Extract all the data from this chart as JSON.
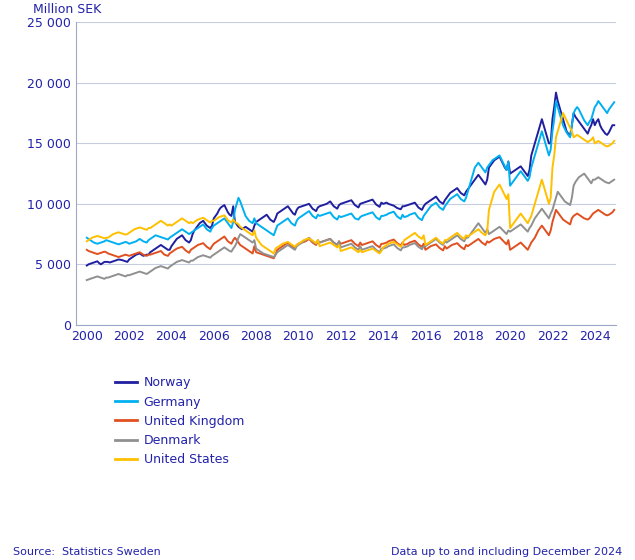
{
  "ylabel": "Million SEK",
  "ylim": [
    0,
    25000
  ],
  "yticks": [
    0,
    5000,
    10000,
    15000,
    20000,
    25000
  ],
  "ytick_labels": [
    "0",
    "5 000",
    "10 000",
    "15 000",
    "20 000",
    "25 000"
  ],
  "xticks": [
    2000,
    2002,
    2004,
    2006,
    2008,
    2010,
    2012,
    2014,
    2016,
    2018,
    2020,
    2022,
    2024
  ],
  "xlim": [
    1999.5,
    2025.0
  ],
  "source_text": "Source:  Statistics Sweden",
  "data_text": "Data up to and including December 2024",
  "background_color": "#ffffff",
  "grid_color": "#c8cce0",
  "text_color": "#2222aa",
  "series": {
    "Norway": {
      "color": "#1f1f9f",
      "linewidth": 1.4
    },
    "Germany": {
      "color": "#00b0f0",
      "linewidth": 1.4
    },
    "United Kingdom": {
      "color": "#e05020",
      "linewidth": 1.4
    },
    "Denmark": {
      "color": "#909090",
      "linewidth": 1.4
    },
    "United States": {
      "color": "#ffc000",
      "linewidth": 1.4
    }
  },
  "legend_entries": [
    "Norway",
    "Germany",
    "United Kingdom",
    "Denmark",
    "United States"
  ],
  "norway_vals": [
    4900,
    5000,
    5050,
    5100,
    5150,
    5200,
    5250,
    5100,
    5000,
    5100,
    5200,
    5200,
    5200,
    5150,
    5200,
    5250,
    5300,
    5350,
    5400,
    5380,
    5350,
    5300,
    5250,
    5200,
    5400,
    5500,
    5600,
    5700,
    5800,
    5850,
    5900,
    5800,
    5700,
    5750,
    5800,
    5800,
    6000,
    6100,
    6200,
    6300,
    6400,
    6500,
    6600,
    6500,
    6400,
    6300,
    6200,
    6200,
    6500,
    6700,
    6900,
    7100,
    7200,
    7300,
    7400,
    7200,
    7000,
    6900,
    6800,
    7000,
    7500,
    7800,
    8000,
    8200,
    8400,
    8500,
    8600,
    8400,
    8200,
    8100,
    8000,
    8200,
    8800,
    9000,
    9200,
    9500,
    9700,
    9800,
    9900,
    9600,
    9300,
    9100,
    9000,
    9800,
    8500,
    8300,
    8100,
    8000,
    7900,
    8000,
    8100,
    8000,
    7900,
    7800,
    7700,
    8200,
    8500,
    8600,
    8700,
    8800,
    8900,
    9000,
    9100,
    8900,
    8700,
    8600,
    8500,
    8800,
    9200,
    9300,
    9400,
    9500,
    9600,
    9700,
    9800,
    9600,
    9400,
    9200,
    9100,
    9500,
    9700,
    9750,
    9800,
    9850,
    9900,
    9950,
    10000,
    9800,
    9600,
    9500,
    9400,
    9700,
    9800,
    9850,
    9900,
    9950,
    10000,
    10100,
    10200,
    10000,
    9800,
    9700,
    9600,
    9900,
    10000,
    10050,
    10100,
    10150,
    10200,
    10250,
    10300,
    10100,
    9900,
    9800,
    9700,
    10000,
    10050,
    10100,
    10150,
    10200,
    10250,
    10300,
    10350,
    10150,
    9950,
    9850,
    9750,
    10100,
    10000,
    10050,
    10100,
    10000,
    9950,
    9900,
    9850,
    9750,
    9650,
    9600,
    9550,
    9800,
    9800,
    9850,
    9900,
    9950,
    10000,
    10050,
    10100,
    9900,
    9700,
    9600,
    9500,
    9800,
    10000,
    10100,
    10200,
    10300,
    10400,
    10500,
    10600,
    10400,
    10200,
    10100,
    10000,
    10300,
    10500,
    10700,
    10900,
    11000,
    11100,
    11200,
    11300,
    11100,
    10900,
    10800,
    10700,
    11000,
    11200,
    11400,
    11600,
    11800,
    12000,
    12200,
    12400,
    12200,
    12000,
    11800,
    11600,
    12000,
    13000,
    13200,
    13400,
    13600,
    13700,
    13800,
    13900,
    13600,
    13300,
    13000,
    12800,
    13500,
    12500,
    12600,
    12700,
    12800,
    12900,
    13000,
    13100,
    12900,
    12700,
    12500,
    12300,
    12800,
    14000,
    14500,
    15000,
    15500,
    16000,
    16500,
    17000,
    16500,
    16000,
    15500,
    15000,
    15000,
    17000,
    18000,
    19200,
    18500,
    18000,
    17500,
    17000,
    16500,
    16000,
    15800,
    15600,
    16500,
    17500,
    17200,
    17000,
    16800,
    16600,
    16400,
    16200,
    16000,
    15800,
    16200,
    16500,
    17000,
    16500,
    16800,
    17000,
    16500,
    16200,
    16000,
    15800,
    15700,
    15900,
    16200,
    16500,
    16500
  ],
  "germany_vals": [
    7200,
    7100,
    7000,
    6900,
    6800,
    6750,
    6700,
    6750,
    6800,
    6850,
    6900,
    7000,
    6950,
    6900,
    6850,
    6800,
    6750,
    6700,
    6650,
    6700,
    6750,
    6800,
    6850,
    6800,
    6700,
    6750,
    6800,
    6850,
    6900,
    7000,
    7100,
    7000,
    6900,
    6850,
    6800,
    7000,
    7100,
    7200,
    7300,
    7400,
    7350,
    7300,
    7250,
    7200,
    7150,
    7100,
    7050,
    7200,
    7300,
    7400,
    7500,
    7600,
    7700,
    7800,
    7900,
    7800,
    7700,
    7600,
    7500,
    7600,
    7700,
    7800,
    7900,
    8000,
    8100,
    8200,
    8300,
    8100,
    7900,
    7800,
    7700,
    8000,
    8200,
    8300,
    8400,
    8500,
    8600,
    8700,
    8800,
    8600,
    8400,
    8200,
    8000,
    8500,
    9500,
    10000,
    10500,
    10200,
    9800,
    9400,
    9000,
    8800,
    8600,
    8500,
    8400,
    8800,
    8400,
    8300,
    8200,
    8100,
    8000,
    7900,
    7800,
    7700,
    7600,
    7500,
    7400,
    7800,
    8200,
    8300,
    8400,
    8500,
    8600,
    8700,
    8800,
    8600,
    8400,
    8300,
    8200,
    8600,
    8800,
    8900,
    9000,
    9100,
    9200,
    9300,
    9400,
    9200,
    9000,
    8900,
    8800,
    9100,
    9000,
    9050,
    9100,
    9150,
    9200,
    9250,
    9300,
    9100,
    8900,
    8800,
    8700,
    9000,
    8900,
    8950,
    9000,
    9050,
    9100,
    9150,
    9200,
    9000,
    8800,
    8750,
    8700,
    8900,
    9000,
    9050,
    9100,
    9150,
    9200,
    9250,
    9300,
    9100,
    8900,
    8800,
    8700,
    9000,
    9000,
    9050,
    9100,
    9200,
    9250,
    9300,
    9350,
    9150,
    8950,
    8850,
    8750,
    9100,
    8900,
    8950,
    9000,
    9100,
    9150,
    9200,
    9250,
    9050,
    8850,
    8750,
    8650,
    9000,
    9200,
    9400,
    9600,
    9800,
    9900,
    10000,
    10100,
    9900,
    9700,
    9600,
    9500,
    9800,
    10000,
    10200,
    10400,
    10500,
    10600,
    10700,
    10800,
    10600,
    10400,
    10300,
    10200,
    10500,
    11000,
    11500,
    12000,
    12500,
    13000,
    13200,
    13400,
    13200,
    13000,
    12800,
    12600,
    13000,
    13200,
    13400,
    13600,
    13700,
    13800,
    13900,
    14000,
    13700,
    13400,
    13100,
    12800,
    13500,
    11500,
    11700,
    11900,
    12100,
    12300,
    12500,
    12700,
    12500,
    12300,
    12100,
    11900,
    12200,
    13000,
    13500,
    14000,
    14500,
    15000,
    15500,
    16000,
    15500,
    15000,
    14500,
    14000,
    14500,
    16000,
    17000,
    18500,
    18000,
    17500,
    17000,
    16500,
    16200,
    15900,
    15700,
    15500,
    16500,
    17500,
    17800,
    18000,
    17800,
    17500,
    17200,
    16900,
    16700,
    16500,
    16800,
    17000,
    17500,
    18000,
    18200,
    18500,
    18300,
    18100,
    17900,
    17700,
    17500,
    17800,
    18000,
    18200,
    18400
  ],
  "uk_vals": [
    6200,
    6100,
    6050,
    6000,
    5950,
    5900,
    5850,
    5900,
    5950,
    6000,
    6050,
    6000,
    5900,
    5850,
    5800,
    5750,
    5700,
    5650,
    5600,
    5650,
    5700,
    5750,
    5800,
    5750,
    5700,
    5750,
    5800,
    5850,
    5900,
    5950,
    6000,
    5900,
    5800,
    5750,
    5700,
    5800,
    5800,
    5850,
    5900,
    5950,
    6000,
    6050,
    6100,
    5950,
    5800,
    5750,
    5700,
    5900,
    6000,
    6100,
    6200,
    6300,
    6350,
    6400,
    6450,
    6300,
    6150,
    6050,
    5950,
    6200,
    6300,
    6400,
    6500,
    6600,
    6650,
    6700,
    6750,
    6600,
    6450,
    6350,
    6250,
    6500,
    6700,
    6800,
    6900,
    7000,
    7100,
    7200,
    7300,
    7100,
    6900,
    6800,
    6700,
    7000,
    7200,
    7000,
    6800,
    6600,
    6500,
    6400,
    6300,
    6200,
    6100,
    6000,
    5900,
    6500,
    6000,
    5950,
    5900,
    5850,
    5800,
    5750,
    5700,
    5650,
    5600,
    5550,
    5500,
    5800,
    6200,
    6300,
    6400,
    6500,
    6600,
    6700,
    6800,
    6650,
    6500,
    6400,
    6300,
    6600,
    6700,
    6750,
    6800,
    6850,
    6900,
    7000,
    7100,
    6950,
    6800,
    6700,
    6600,
    6900,
    6800,
    6850,
    6900,
    6950,
    7000,
    7050,
    7100,
    6950,
    6800,
    6700,
    6600,
    6900,
    6700,
    6750,
    6800,
    6850,
    6900,
    6950,
    7000,
    6850,
    6700,
    6600,
    6500,
    6800,
    6600,
    6650,
    6700,
    6750,
    6800,
    6850,
    6900,
    6750,
    6600,
    6500,
    6400,
    6700,
    6700,
    6750,
    6800,
    6900,
    6950,
    7000,
    7050,
    6900,
    6750,
    6650,
    6550,
    6800,
    6600,
    6650,
    6700,
    6800,
    6850,
    6900,
    6950,
    6800,
    6650,
    6550,
    6450,
    6700,
    6200,
    6300,
    6400,
    6500,
    6550,
    6600,
    6650,
    6500,
    6350,
    6250,
    6150,
    6500,
    6300,
    6400,
    6500,
    6600,
    6650,
    6700,
    6750,
    6600,
    6450,
    6350,
    6250,
    6600,
    6500,
    6600,
    6700,
    6800,
    6900,
    7000,
    7100,
    6950,
    6800,
    6700,
    6600,
    6900,
    6800,
    6900,
    7000,
    7100,
    7150,
    7200,
    7250,
    7100,
    6950,
    6800,
    6650,
    7000,
    6200,
    6300,
    6400,
    6500,
    6600,
    6700,
    6800,
    6650,
    6500,
    6350,
    6200,
    6500,
    6800,
    7000,
    7200,
    7500,
    7800,
    8000,
    8200,
    8000,
    7800,
    7600,
    7400,
    7800,
    8500,
    9000,
    9500,
    9300,
    9100,
    8900,
    8700,
    8600,
    8500,
    8400,
    8300,
    8800,
    9000,
    9100,
    9200,
    9100,
    9000,
    8900,
    8800,
    8750,
    8700,
    8800,
    9000,
    9200,
    9300,
    9400,
    9500,
    9400,
    9300,
    9200,
    9100,
    9050,
    9100,
    9200,
    9300,
    9500
  ],
  "denmark_vals": [
    3700,
    3750,
    3800,
    3850,
    3900,
    3950,
    4000,
    3950,
    3900,
    3850,
    3800,
    3900,
    3900,
    3950,
    4000,
    4050,
    4100,
    4150,
    4200,
    4150,
    4100,
    4050,
    4000,
    4100,
    4100,
    4150,
    4200,
    4250,
    4300,
    4350,
    4400,
    4350,
    4300,
    4250,
    4200,
    4300,
    4400,
    4500,
    4600,
    4700,
    4750,
    4800,
    4850,
    4800,
    4750,
    4700,
    4650,
    4800,
    4900,
    5000,
    5100,
    5200,
    5250,
    5300,
    5350,
    5300,
    5250,
    5200,
    5150,
    5300,
    5300,
    5400,
    5500,
    5600,
    5650,
    5700,
    5750,
    5700,
    5650,
    5600,
    5550,
    5700,
    5800,
    5900,
    6000,
    6100,
    6200,
    6300,
    6400,
    6300,
    6200,
    6100,
    6050,
    6300,
    6500,
    6800,
    7200,
    7500,
    7400,
    7300,
    7200,
    7100,
    7000,
    6900,
    6800,
    7000,
    6300,
    6200,
    6100,
    6000,
    5900,
    5850,
    5800,
    5750,
    5700,
    5650,
    5600,
    5800,
    6000,
    6100,
    6200,
    6300,
    6400,
    6500,
    6600,
    6500,
    6400,
    6300,
    6200,
    6500,
    6600,
    6700,
    6800,
    6900,
    7000,
    7100,
    7200,
    7050,
    6900,
    6800,
    6700,
    7000,
    6800,
    6850,
    6900,
    6950,
    7000,
    7050,
    7100,
    6950,
    6800,
    6700,
    6600,
    6900,
    6400,
    6450,
    6500,
    6550,
    6600,
    6650,
    6700,
    6550,
    6400,
    6300,
    6200,
    6500,
    6200,
    6250,
    6300,
    6350,
    6400,
    6450,
    6500,
    6350,
    6200,
    6100,
    6000,
    6300,
    6300,
    6350,
    6400,
    6500,
    6550,
    6600,
    6650,
    6500,
    6350,
    6250,
    6150,
    6400,
    6400,
    6450,
    6500,
    6600,
    6650,
    6700,
    6750,
    6600,
    6450,
    6350,
    6250,
    6500,
    6500,
    6600,
    6700,
    6800,
    6900,
    7000,
    7100,
    6950,
    6800,
    6700,
    6600,
    6900,
    6800,
    6900,
    7000,
    7100,
    7200,
    7300,
    7400,
    7250,
    7100,
    7000,
    6900,
    7200,
    7200,
    7400,
    7600,
    7800,
    8000,
    8200,
    8400,
    8200,
    8000,
    7800,
    7600,
    7900,
    7500,
    7600,
    7700,
    7800,
    7900,
    8000,
    8100,
    7950,
    7800,
    7650,
    7500,
    7800,
    7700,
    7800,
    7900,
    8000,
    8100,
    8200,
    8300,
    8150,
    8000,
    7850,
    7700,
    8000,
    8200,
    8500,
    8800,
    9000,
    9200,
    9400,
    9600,
    9400,
    9200,
    9000,
    8800,
    9200,
    9500,
    10000,
    10500,
    11000,
    10800,
    10600,
    10400,
    10200,
    10100,
    10000,
    9900,
    10500,
    11500,
    11800,
    12000,
    12200,
    12300,
    12400,
    12500,
    12300,
    12100,
    11900,
    11700,
    12000,
    12000,
    12100,
    12200,
    12100,
    12000,
    11900,
    11800,
    11750,
    11700,
    11800,
    11900,
    12000
  ],
  "us_vals": [
    6900,
    7000,
    7100,
    7200,
    7250,
    7300,
    7350,
    7300,
    7250,
    7200,
    7150,
    7200,
    7200,
    7300,
    7400,
    7500,
    7550,
    7600,
    7650,
    7600,
    7550,
    7500,
    7450,
    7500,
    7600,
    7700,
    7800,
    7900,
    7950,
    8000,
    8050,
    8000,
    7950,
    7900,
    7850,
    8000,
    8000,
    8100,
    8200,
    8300,
    8400,
    8500,
    8600,
    8500,
    8400,
    8300,
    8200,
    8300,
    8200,
    8300,
    8400,
    8500,
    8600,
    8700,
    8800,
    8700,
    8600,
    8500,
    8400,
    8500,
    8400,
    8500,
    8600,
    8700,
    8750,
    8800,
    8850,
    8750,
    8650,
    8550,
    8450,
    8600,
    8600,
    8700,
    8800,
    8900,
    8950,
    9000,
    9050,
    8850,
    8650,
    8550,
    8450,
    8700,
    8500,
    8400,
    8300,
    8100,
    8000,
    7900,
    7800,
    7700,
    7600,
    7500,
    7400,
    7800,
    7200,
    7000,
    6800,
    6600,
    6500,
    6400,
    6300,
    6200,
    6100,
    6000,
    5900,
    6300,
    6400,
    6500,
    6600,
    6700,
    6750,
    6800,
    6850,
    6750,
    6650,
    6550,
    6450,
    6600,
    6700,
    6800,
    6900,
    7000,
    7050,
    7100,
    7150,
    7050,
    6950,
    6850,
    6750,
    7000,
    6500,
    6550,
    6600,
    6650,
    6700,
    6750,
    6800,
    6700,
    6600,
    6500,
    6400,
    6600,
    6100,
    6150,
    6200,
    6250,
    6300,
    6350,
    6400,
    6300,
    6200,
    6100,
    6000,
    6200,
    6000,
    6050,
    6100,
    6150,
    6200,
    6250,
    6300,
    6200,
    6100,
    6000,
    5900,
    6100,
    6400,
    6500,
    6600,
    6700,
    6750,
    6800,
    6850,
    6750,
    6650,
    6550,
    6450,
    6700,
    7000,
    7100,
    7200,
    7300,
    7400,
    7500,
    7600,
    7450,
    7300,
    7200,
    7100,
    7400,
    6600,
    6700,
    6800,
    6900,
    7000,
    7100,
    7200,
    7050,
    6900,
    6800,
    6700,
    7000,
    7000,
    7100,
    7200,
    7300,
    7400,
    7500,
    7600,
    7450,
    7300,
    7200,
    7100,
    7400,
    7300,
    7400,
    7500,
    7600,
    7700,
    7800,
    7900,
    7750,
    7600,
    7500,
    7400,
    7700,
    9500,
    10000,
    10500,
    11000,
    11200,
    11400,
    11600,
    11300,
    11000,
    10700,
    10400,
    10800,
    8000,
    8200,
    8400,
    8600,
    8800,
    9000,
    9200,
    9000,
    8800,
    8600,
    8400,
    8700,
    9000,
    9500,
    10000,
    10500,
    11000,
    11500,
    12000,
    11500,
    11000,
    10500,
    10000,
    10500,
    13000,
    14000,
    15500,
    16000,
    16500,
    17000,
    17500,
    17200,
    16900,
    16600,
    16300,
    16000,
    15500,
    15600,
    15700,
    15600,
    15500,
    15400,
    15300,
    15200,
    15100,
    15200,
    15300,
    15500,
    15000,
    15100,
    15200,
    15100,
    15000,
    14900,
    14800,
    14750,
    14800,
    14900,
    15000,
    15200
  ]
}
